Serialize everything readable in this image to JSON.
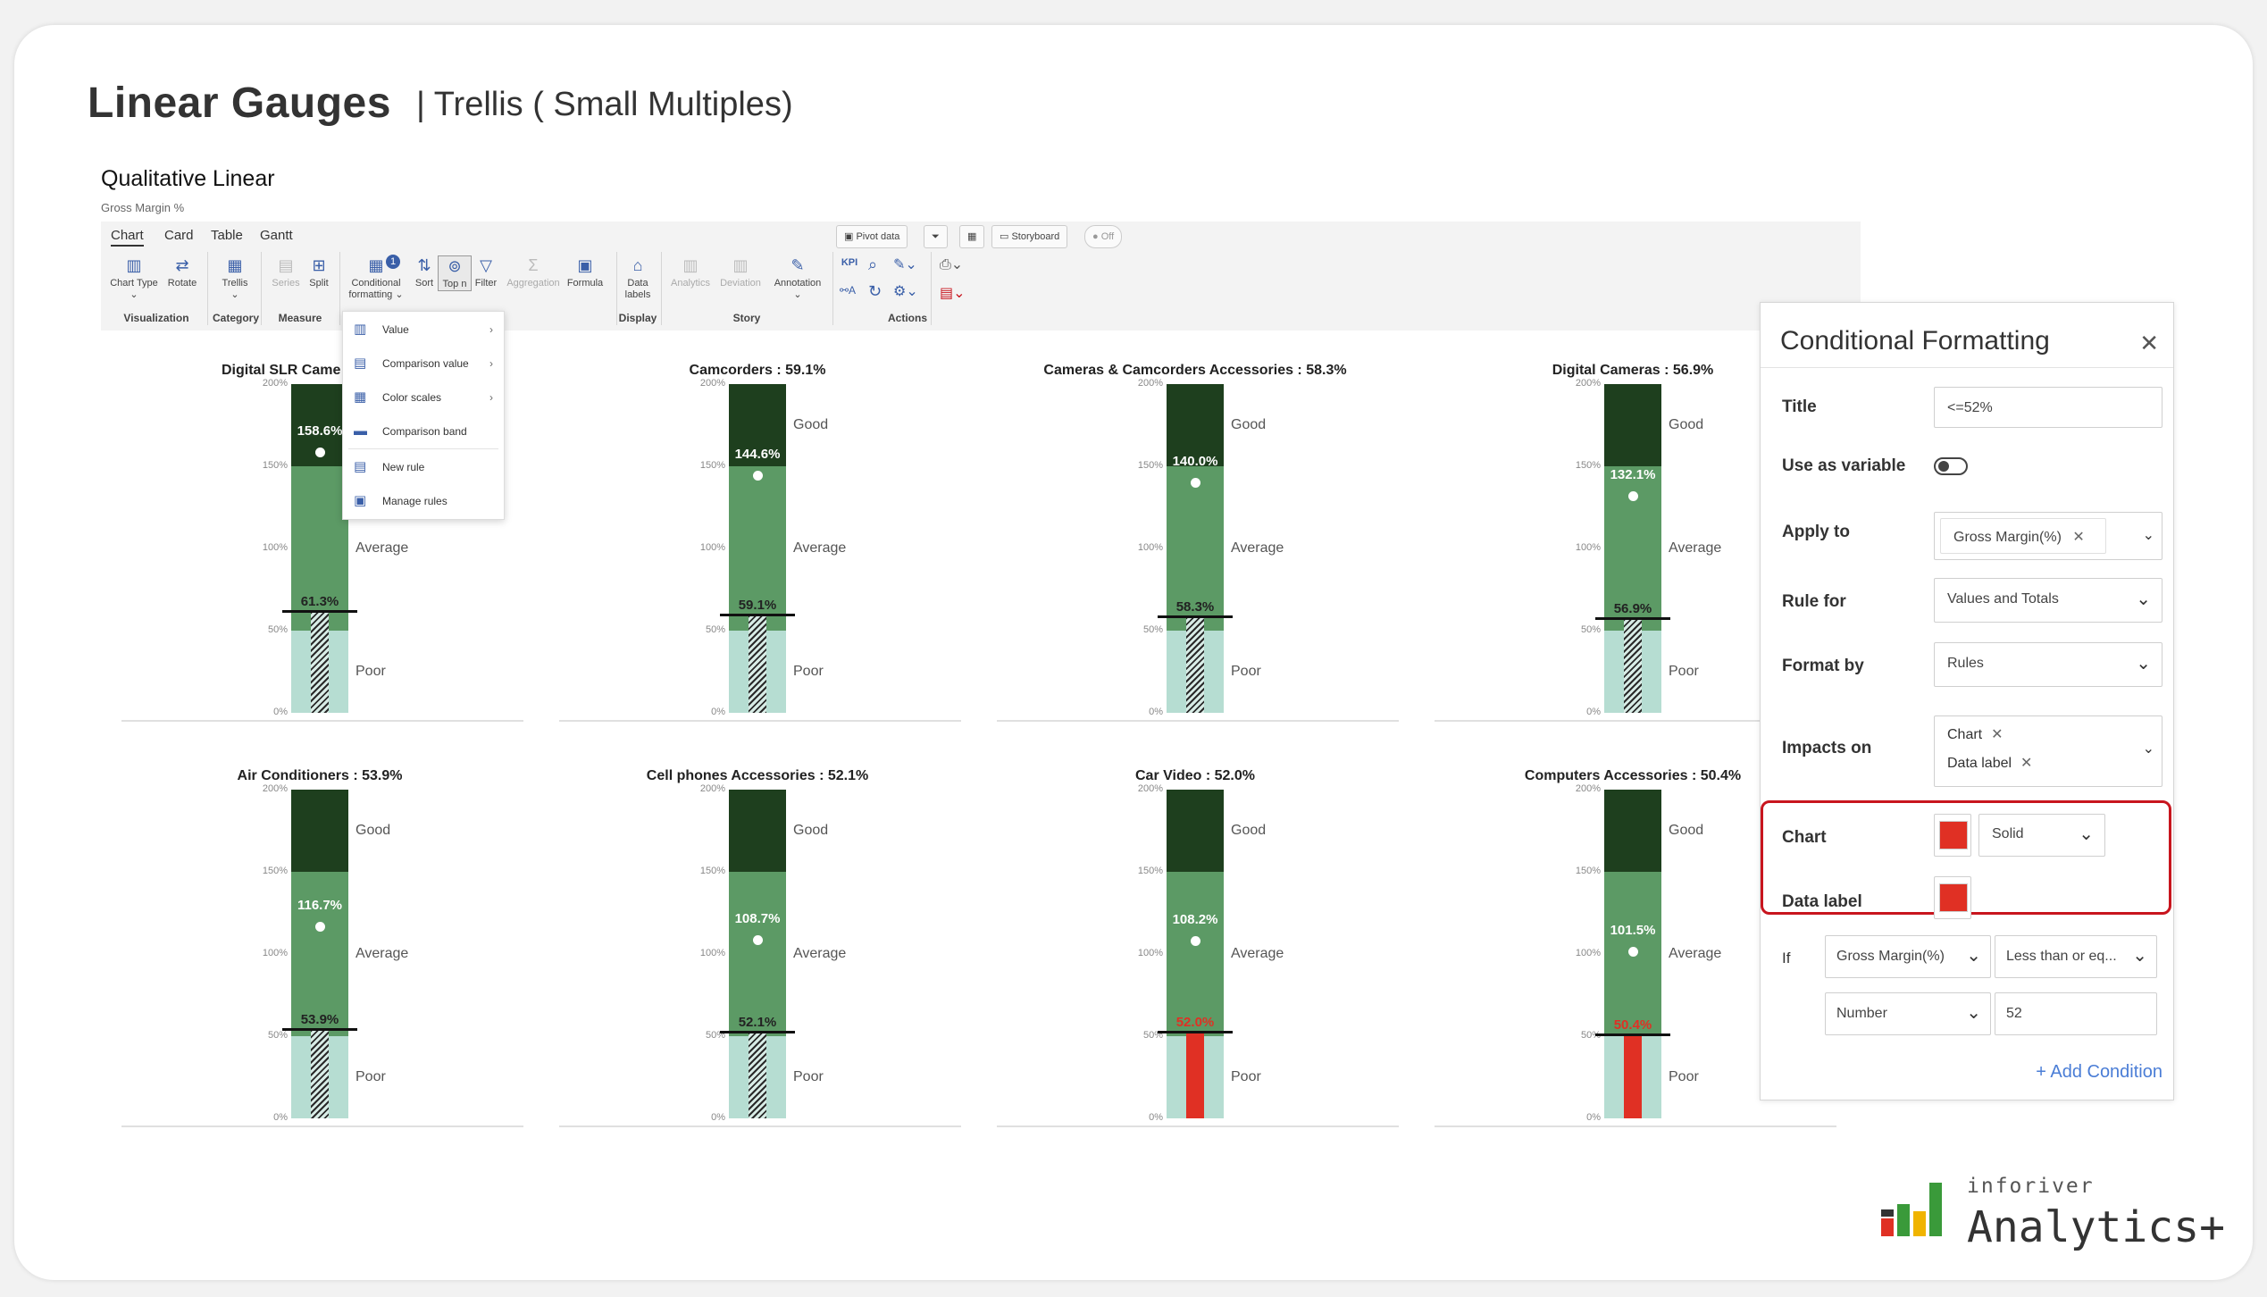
{
  "header": {
    "title": "Linear Gauges",
    "subtitle": "| Trellis ( Small Multiples)"
  },
  "section": {
    "title": "Qualitative Linear",
    "subtitle": "Gross Margin %"
  },
  "ribbon": {
    "tabs": [
      "Chart",
      "Card",
      "Table",
      "Gantt"
    ],
    "buttons": {
      "chart_type": "Chart Type",
      "rotate": "Rotate",
      "trellis": "Trellis",
      "series": "Series",
      "split": "Split",
      "conditional_formatting": "Conditional formatting",
      "sort": "Sort",
      "top_n": "Top n",
      "filter": "Filter",
      "aggregation": "Aggregation",
      "formula": "Formula",
      "data_labels": "Data labels",
      "analytics": "Analytics",
      "deviation": "Deviation",
      "annotation": "Annotation",
      "kpi": "KPI"
    },
    "groups": {
      "visualization": "Visualization",
      "category": "Category",
      "measure": "Measure",
      "display": "Display",
      "story": "Story",
      "actions": "Actions"
    },
    "top_chips": {
      "pivot": "Pivot data",
      "storyboard": "Storyboard",
      "toggle": "Off"
    },
    "cf_badge": "1"
  },
  "dropdown": {
    "items": [
      {
        "label": "Value",
        "submenu": true
      },
      {
        "label": "Comparison value",
        "submenu": true
      },
      {
        "label": "Color scales",
        "submenu": true
      },
      {
        "label": "Comparison band",
        "submenu": false
      },
      {
        "label": "New rule",
        "submenu": false
      },
      {
        "label": "Manage rules",
        "submenu": false
      }
    ]
  },
  "gauges": {
    "ticks": [
      "200%",
      "150%",
      "100%",
      "50%",
      "0%"
    ],
    "band_labels": {
      "good": "Good",
      "average": "Average",
      "poor": "Poor"
    },
    "panels": [
      {
        "title": "Digital SLR Came",
        "target": "158.6%",
        "actual": "61.3%",
        "target_v": 158.6,
        "actual_v": 61.3,
        "highlight": false
      },
      {
        "title": "Camcorders : 59.1%",
        "target": "144.6%",
        "actual": "59.1%",
        "target_v": 144.6,
        "actual_v": 59.1,
        "highlight": false
      },
      {
        "title": "Cameras & Camcorders Accessories : 58.3%",
        "target": "140.0%",
        "actual": "58.3%",
        "target_v": 140.0,
        "actual_v": 58.3,
        "highlight": false
      },
      {
        "title": "Digital Cameras : 56.9%",
        "target": "132.1%",
        "actual": "56.9%",
        "target_v": 132.1,
        "actual_v": 56.9,
        "highlight": false
      },
      {
        "title": "Air Conditioners : 53.9%",
        "target": "116.7%",
        "actual": "53.9%",
        "target_v": 116.7,
        "actual_v": 53.9,
        "highlight": false
      },
      {
        "title": "Cell phones Accessories : 52.1%",
        "target": "108.7%",
        "actual": "52.1%",
        "target_v": 108.7,
        "actual_v": 52.1,
        "highlight": false
      },
      {
        "title": "Car Video : 52.0%",
        "target": "108.2%",
        "actual": "52.0%",
        "target_v": 108.2,
        "actual_v": 52.0,
        "highlight": true
      },
      {
        "title": "Computers Accessories : 50.4%",
        "target": "101.5%",
        "actual": "50.4%",
        "target_v": 101.5,
        "actual_v": 50.4,
        "highlight": true
      }
    ],
    "colors": {
      "good": "#1e3f1e",
      "average": "#5c9a65",
      "poor": "#b6ddd2",
      "highlight": "#e03024"
    }
  },
  "cf_panel": {
    "title": "Conditional Formatting",
    "fields": {
      "title_label": "Title",
      "title_value": "<=52%",
      "variable_label": "Use as variable",
      "apply_label": "Apply to",
      "apply_tag": "Gross Margin(%)",
      "rule_label": "Rule for",
      "rule_value": "Values and Totals",
      "format_label": "Format by",
      "format_value": "Rules",
      "impacts_label": "Impacts on",
      "impacts_tags": [
        "Chart",
        "Data label"
      ],
      "chart_label": "Chart",
      "chart_style": "Solid",
      "datalabel_label": "Data label",
      "if_label": "If",
      "if_field": "Gross Margin(%)",
      "if_op": "Less than or eq...",
      "if_type": "Number",
      "if_value": "52",
      "add_condition": "+ Add Condition"
    },
    "swatch_color": "#e03024"
  },
  "logo": {
    "small": "inforiver",
    "big": "Analytics+"
  }
}
